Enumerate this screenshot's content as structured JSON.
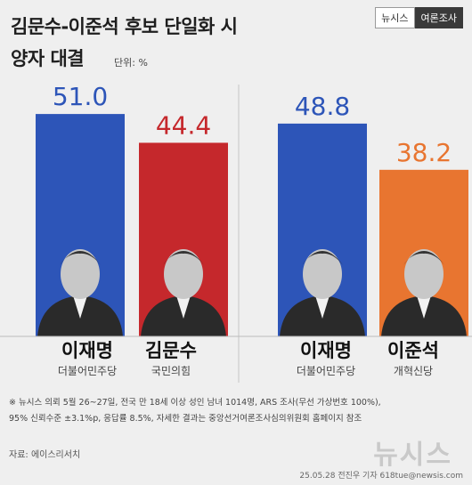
{
  "title_line1": "김문수-이준석 후보 단일화 시",
  "title_line2": "양자 대결",
  "unit": "단위: %",
  "brand": {
    "left": "뉴시스",
    "right": "여론조사"
  },
  "chart_data": [
    {
      "type": "bar",
      "categories": [
        "이재명",
        "김문수"
      ],
      "parties": [
        "더불어민주당",
        "국민의힘"
      ],
      "values": [
        51.0,
        44.4
      ],
      "labels": [
        "51.0",
        "44.4"
      ],
      "colors": [
        "#2d55b8",
        "#c5282c"
      ],
      "label_colors": [
        "#2d55b8",
        "#c5282c"
      ]
    },
    {
      "type": "bar",
      "categories": [
        "이재명",
        "이준석"
      ],
      "parties": [
        "더불어민주당",
        "개혁신당"
      ],
      "values": [
        48.8,
        38.2
      ],
      "labels": [
        "48.8",
        "38.2"
      ],
      "colors": [
        "#2d55b8",
        "#e87530"
      ],
      "label_colors": [
        "#2d55b8",
        "#e87530"
      ]
    }
  ],
  "note1": "※ 뉴시스 의뢰 5월 26~27일, 전국 만 18세 이상 성인 남녀 1014명, ARS 조사(무선 가상번호 100%),",
  "note2": "95% 신뢰수준 ±3.1%p, 응답률 8.5%, 자세한 결과는 중앙선거여론조사심의위원회 홈페이지 참조",
  "source": "자료: 에이스리서치",
  "credit": "25.05.28 전진우 기자 618tue@newsis.com",
  "watermark": "뉴시스"
}
